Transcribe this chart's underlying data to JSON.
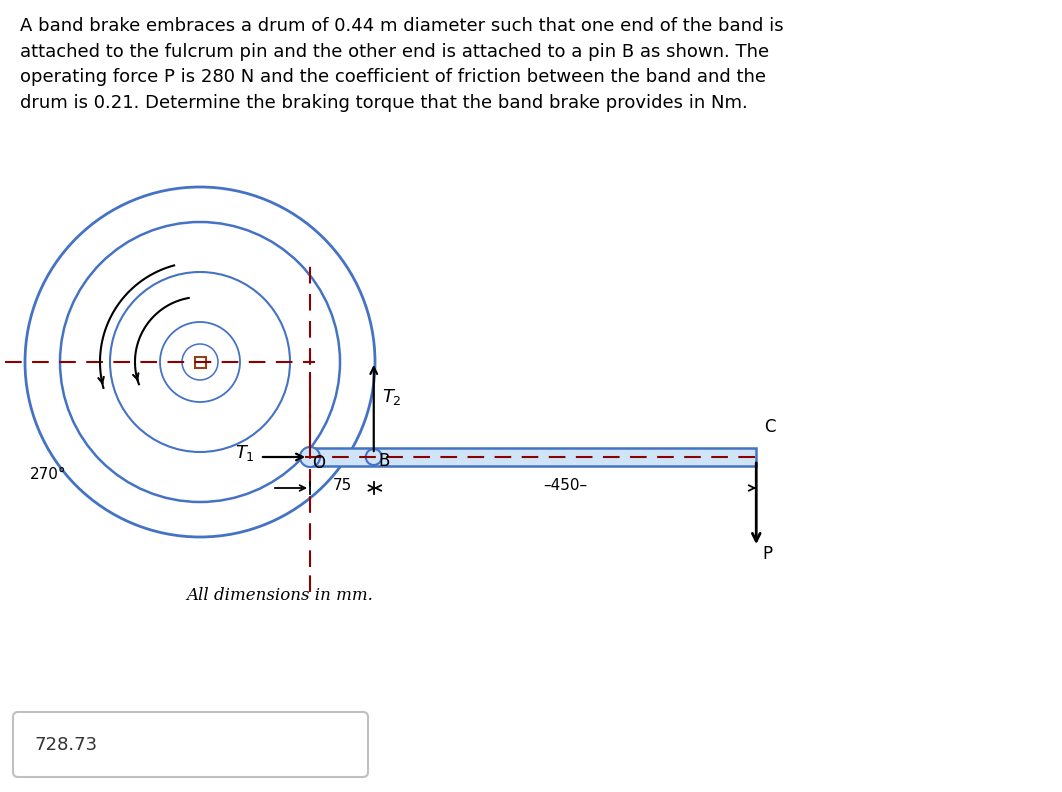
{
  "title_text": "A band brake embraces a drum of 0.44 m diameter such that one end of the band is\nattached to the fulcrum pin and the other end is attached to a pin B as shown. The\noperating force P is 280 N and the coefficient of friction between the band and the\ndrum is 0.21. Determine the braking torque that the band brake provides in Nm.",
  "answer_text": "728.73",
  "all_dim_text": "All dimensions in mm.",
  "dim_75": "75",
  "dim_450": "450",
  "label_P": "P",
  "label_B": "B",
  "label_O": "O",
  "label_T1": "T",
  "label_T2": "T",
  "label_C": "C",
  "label_270": "270°",
  "bg_color": "#ffffff",
  "drum_color": "#4472C4",
  "dashed_color": "#8B0000",
  "text_color": "#000000",
  "answer_box_color": "#aaaaaa",
  "note_color": "#555555"
}
